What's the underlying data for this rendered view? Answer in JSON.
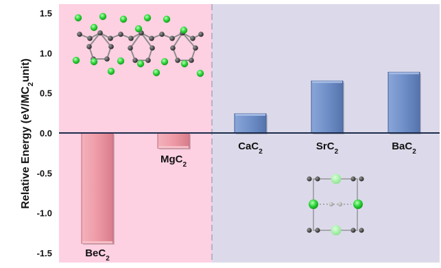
{
  "chart_data": {
    "type": "bar",
    "ylabel": {
      "prefix": "Relative Energy (eV/MC",
      "sub": "2",
      "suffix": "unit)"
    },
    "ylim": [
      -1.6,
      1.6
    ],
    "yticks": [
      "1.5",
      "1.0",
      "0.5",
      "0.0",
      "-0.5",
      "-1.0",
      "-1.5"
    ],
    "ytick_values": [
      1.5,
      1.0,
      0.5,
      0.0,
      -0.5,
      -1.0,
      -1.5
    ],
    "categories": [
      {
        "base": "BeC",
        "sub": "2"
      },
      {
        "base": "MgC",
        "sub": "2"
      },
      {
        "base": "CaC",
        "sub": "2"
      },
      {
        "base": "SrC",
        "sub": "2"
      },
      {
        "base": "BaC",
        "sub": "2"
      }
    ],
    "values": [
      -1.38,
      -0.19,
      0.24,
      0.65,
      0.76
    ],
    "colors": {
      "left_region": "#fdd0e2",
      "right_region": "#dcdaea",
      "negative_bar": "#ee9aa6",
      "positive_bar": "#6f8fc8",
      "axis": "#1b2a4a"
    },
    "insets": [
      "chain-structure-illustration",
      "unit-cell-illustration"
    ]
  }
}
